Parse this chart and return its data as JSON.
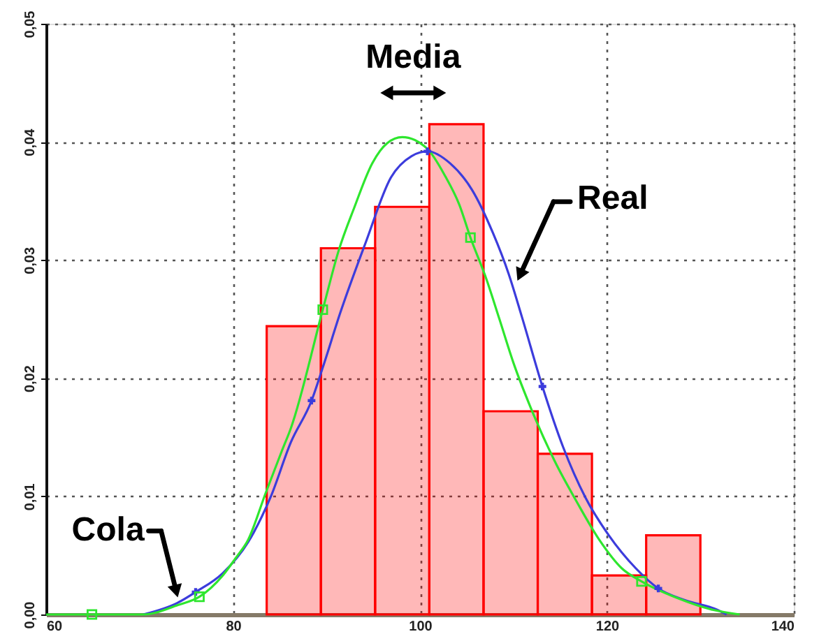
{
  "chart_data": {
    "type": "histogram",
    "color": "#ff0000",
    "bins": [
      83.6,
      89.4,
      95.2,
      101.0,
      106.8,
      112.6,
      118.4,
      124.2,
      130.0
    ],
    "values": [
      0.0244,
      0.031,
      0.0345,
      0.0415,
      0.0172,
      0.0136,
      0.0033,
      0.0067
    ],
    "series": [
      {
        "type": "line",
        "color": "#3c3cdc",
        "x": [
          70.4,
          74.1,
          76.0,
          78.9,
          81.6,
          84.0,
          86.2,
          88.4,
          89.6,
          91.5,
          94.2,
          96.9,
          99.1,
          100.8,
          103.2,
          105.6,
          107.8,
          109.5,
          110.9,
          113.1,
          115.3,
          117.7,
          120.2,
          123.1,
          125.5,
          128.4,
          131.8,
          132.8
        ],
        "values": [
          0,
          0.001,
          0.0019,
          0.0035,
          0.0061,
          0.0099,
          0.0146,
          0.0181,
          0.0209,
          0.0256,
          0.0315,
          0.037,
          0.0388,
          0.0392,
          0.0382,
          0.0359,
          0.0323,
          0.0288,
          0.0252,
          0.0193,
          0.0142,
          0.0099,
          0.0067,
          0.0039,
          0.0022,
          0.0012,
          0.0004,
          0
        ]
      },
      {
        "type": "line",
        "color": "#2ee62e",
        "x": [
          60,
          70.4,
          74.1,
          76.4,
          78.9,
          80.4,
          81.6,
          83.5,
          85.2,
          86.2,
          89.6,
          91.3,
          93.0,
          94.9,
          96.5,
          98.1,
          100.8,
          102.7,
          104.2,
          105.4,
          107.1,
          108.5,
          110.0,
          111.9,
          114.4,
          116.8,
          119.2,
          121.6,
          123.7,
          127.5,
          131.3,
          134.2
        ],
        "values": [
          0,
          0,
          0.0008,
          0.0015,
          0.0033,
          0.0049,
          0.0063,
          0.0103,
          0.0138,
          0.0158,
          0.0258,
          0.0308,
          0.0345,
          0.0382,
          0.0399,
          0.0404,
          0.0394,
          0.0371,
          0.0347,
          0.0319,
          0.0284,
          0.025,
          0.0213,
          0.0174,
          0.013,
          0.0095,
          0.0063,
          0.0039,
          0.0028,
          0.0014,
          0.0004,
          0
        ]
      },
      {
        "type": "scatter",
        "marker": "cross",
        "color": "#3c3cdc",
        "x": [
          76.0,
          88.4,
          100.8,
          113.1,
          125.5
        ],
        "values": [
          0.0019,
          0.0181,
          0.0392,
          0.0193,
          0.0022
        ]
      },
      {
        "type": "scatter",
        "marker": "square",
        "color": "#2ee62e",
        "x": [
          64.9,
          76.4,
          89.6,
          105.4,
          123.7
        ],
        "values": [
          0,
          0.0015,
          0.0258,
          0.0319,
          0.0028
        ]
      }
    ],
    "xlim": [
      60,
      140
    ],
    "xticks": [
      60,
      80,
      100,
      120,
      140
    ],
    "ylim": [
      0,
      0.05
    ],
    "yticks": [
      {
        "value": 0,
        "label": "0,00"
      },
      {
        "value": 0.01,
        "label": "0,01"
      },
      {
        "value": 0.02,
        "label": "0,02"
      },
      {
        "value": 0.03,
        "label": "0,03"
      },
      {
        "value": 0.04,
        "label": "0,04"
      },
      {
        "value": 0.05,
        "label": "0,05"
      }
    ],
    "grid": true,
    "annotations": [
      "Media",
      {
        "text": "Real",
        "x": 110.4,
        "y": 0.0282
      },
      {
        "text": "Cola",
        "x": 74.1,
        "y": 0.0014
      }
    ]
  }
}
